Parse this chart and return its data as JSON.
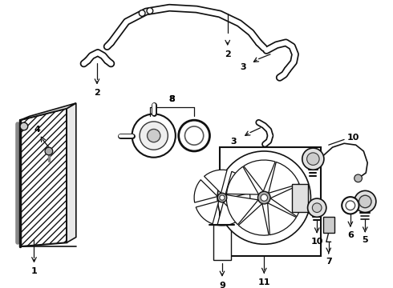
{
  "background_color": "#ffffff",
  "line_color": "#111111",
  "fig_width": 4.9,
  "fig_height": 3.6,
  "dpi": 100,
  "label_fontsize": 8,
  "label_fontweight": "bold"
}
